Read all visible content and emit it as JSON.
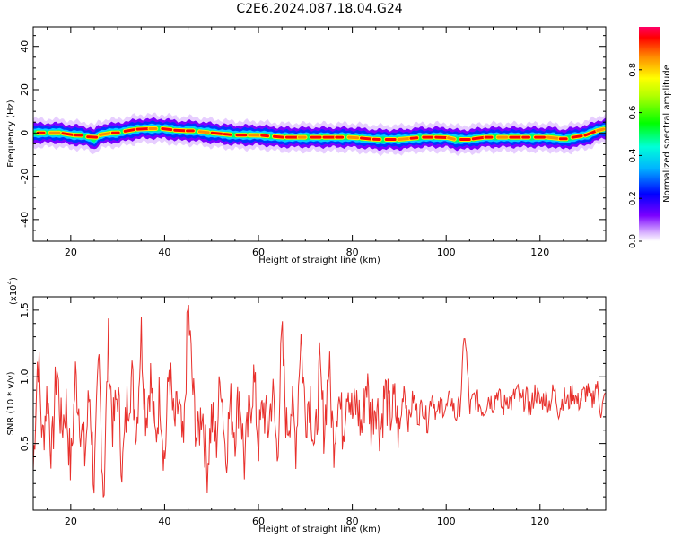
{
  "title": "C2E6.2024.087.18.04.G24",
  "colors": {
    "snr_line": "#e8302c",
    "axis": "#000000"
  },
  "chart_data": [
    {
      "type": "heatmap",
      "xlabel": "Height of straight line (km)",
      "ylabel": "Frequency (Hz)",
      "xlim": [
        12,
        134
      ],
      "ylim": [
        -50,
        49
      ],
      "x_ticks": [
        20,
        40,
        60,
        80,
        100,
        120
      ],
      "y_ticks": [
        -40,
        -20,
        0,
        20,
        40
      ],
      "colormap": "rainbow",
      "colorbar": {
        "label": "Normalized spectral amplitude",
        "range": [
          0.0,
          1.0
        ],
        "ticks": [
          0.0,
          0.2,
          0.4,
          0.6,
          0.8
        ]
      },
      "center_frequency_track": {
        "x": [
          12,
          15,
          18,
          20,
          22,
          24,
          25,
          26,
          28,
          30,
          32,
          35,
          38,
          40,
          43,
          46,
          50,
          55,
          60,
          65,
          70,
          75,
          80,
          85,
          90,
          95,
          100,
          102,
          105,
          108,
          110,
          115,
          120,
          123,
          125,
          127,
          130,
          132,
          134
        ],
        "y": [
          0,
          0,
          0,
          -1,
          -1,
          -2,
          -3,
          -1,
          0,
          0,
          1,
          2,
          2,
          2,
          1,
          1,
          0,
          -1,
          -1,
          -2,
          -2,
          -2,
          -2,
          -3,
          -3,
          -2,
          -2,
          -3,
          -3,
          -2,
          -2,
          -2,
          -2,
          -2,
          -3,
          -2,
          -1,
          1,
          2
        ]
      }
    },
    {
      "type": "line",
      "xlabel": "Height of straight line (km)",
      "ylabel": "SNR (10 * v/v)",
      "y_multiplier": "(x10",
      "y_multiplier_exp": "4",
      "y_multiplier_close": ")",
      "xlim": [
        12,
        134
      ],
      "ylim": [
        0,
        1.6
      ],
      "x_ticks": [
        20,
        40,
        60,
        80,
        100,
        120
      ],
      "y_ticks": [
        0.5,
        1.0,
        1.5
      ],
      "y_tick_labels": [
        "0.5",
        "1.0",
        "1.5"
      ],
      "series": [
        {
          "x": [
            12,
            13,
            14,
            15,
            16,
            17,
            18,
            19,
            20,
            21,
            22,
            23,
            24,
            25,
            26,
            27,
            28,
            29,
            30,
            31,
            32,
            33,
            34,
            35,
            36,
            37,
            38,
            39,
            40,
            41,
            42,
            43,
            44,
            45,
            46,
            47,
            48,
            49,
            50,
            51,
            52,
            53,
            54,
            55,
            56,
            57,
            58,
            59,
            60,
            61,
            62,
            63,
            64,
            65,
            66,
            67,
            68,
            69,
            70,
            71,
            72,
            73,
            74,
            75,
            76,
            77,
            78,
            79,
            80,
            81,
            82,
            83,
            84,
            85,
            86,
            87,
            88,
            89,
            90,
            91,
            92,
            93,
            94,
            95,
            96,
            97,
            98,
            99,
            100,
            101,
            102,
            103,
            104,
            105,
            106,
            107,
            108,
            109,
            110,
            111,
            112,
            113,
            114,
            115,
            116,
            117,
            118,
            119,
            120,
            121,
            122,
            123,
            124,
            125,
            126,
            127,
            128,
            129,
            130,
            131,
            132,
            133,
            134
          ],
          "y": [
            0.3,
            1.2,
            0.5,
            0.9,
            0.4,
            1.1,
            0.6,
            0.8,
            0.3,
            1.0,
            0.7,
            0.4,
            0.9,
            0.2,
            1.1,
            0.1,
            1.25,
            0.6,
            0.9,
            0.3,
            0.8,
            1.0,
            0.6,
            1.35,
            0.7,
            1.0,
            0.5,
            0.9,
            0.35,
            1.1,
            0.6,
            0.8,
            0.4,
            1.55,
            0.9,
            0.5,
            0.8,
            0.3,
            0.7,
            0.5,
            1.05,
            0.4,
            0.8,
            0.6,
            0.9,
            0.35,
            0.7,
            1.0,
            0.5,
            0.8,
            0.6,
            0.9,
            0.4,
            1.3,
            0.6,
            0.8,
            0.5,
            1.35,
            0.7,
            0.9,
            0.4,
            1.05,
            0.6,
            1.1,
            0.5,
            0.9,
            0.6,
            1.0,
            0.7,
            0.8,
            0.6,
            1.0,
            0.65,
            0.85,
            0.6,
            0.9,
            0.7,
            0.8,
            0.55,
            0.95,
            0.65,
            0.85,
            0.7,
            0.8,
            0.65,
            0.9,
            0.7,
            0.8,
            0.75,
            0.85,
            0.7,
            0.8,
            1.35,
            0.75,
            0.85,
            0.8,
            0.75,
            0.85,
            0.8,
            0.9,
            0.75,
            0.85,
            0.8,
            0.9,
            0.8,
            0.85,
            0.75,
            0.9,
            0.8,
            0.85,
            0.8,
            0.9,
            0.75,
            0.85,
            0.8,
            0.9,
            0.8,
            0.85,
            0.9,
            0.8,
            0.95,
            0.75,
            0.85
          ]
        }
      ]
    }
  ]
}
